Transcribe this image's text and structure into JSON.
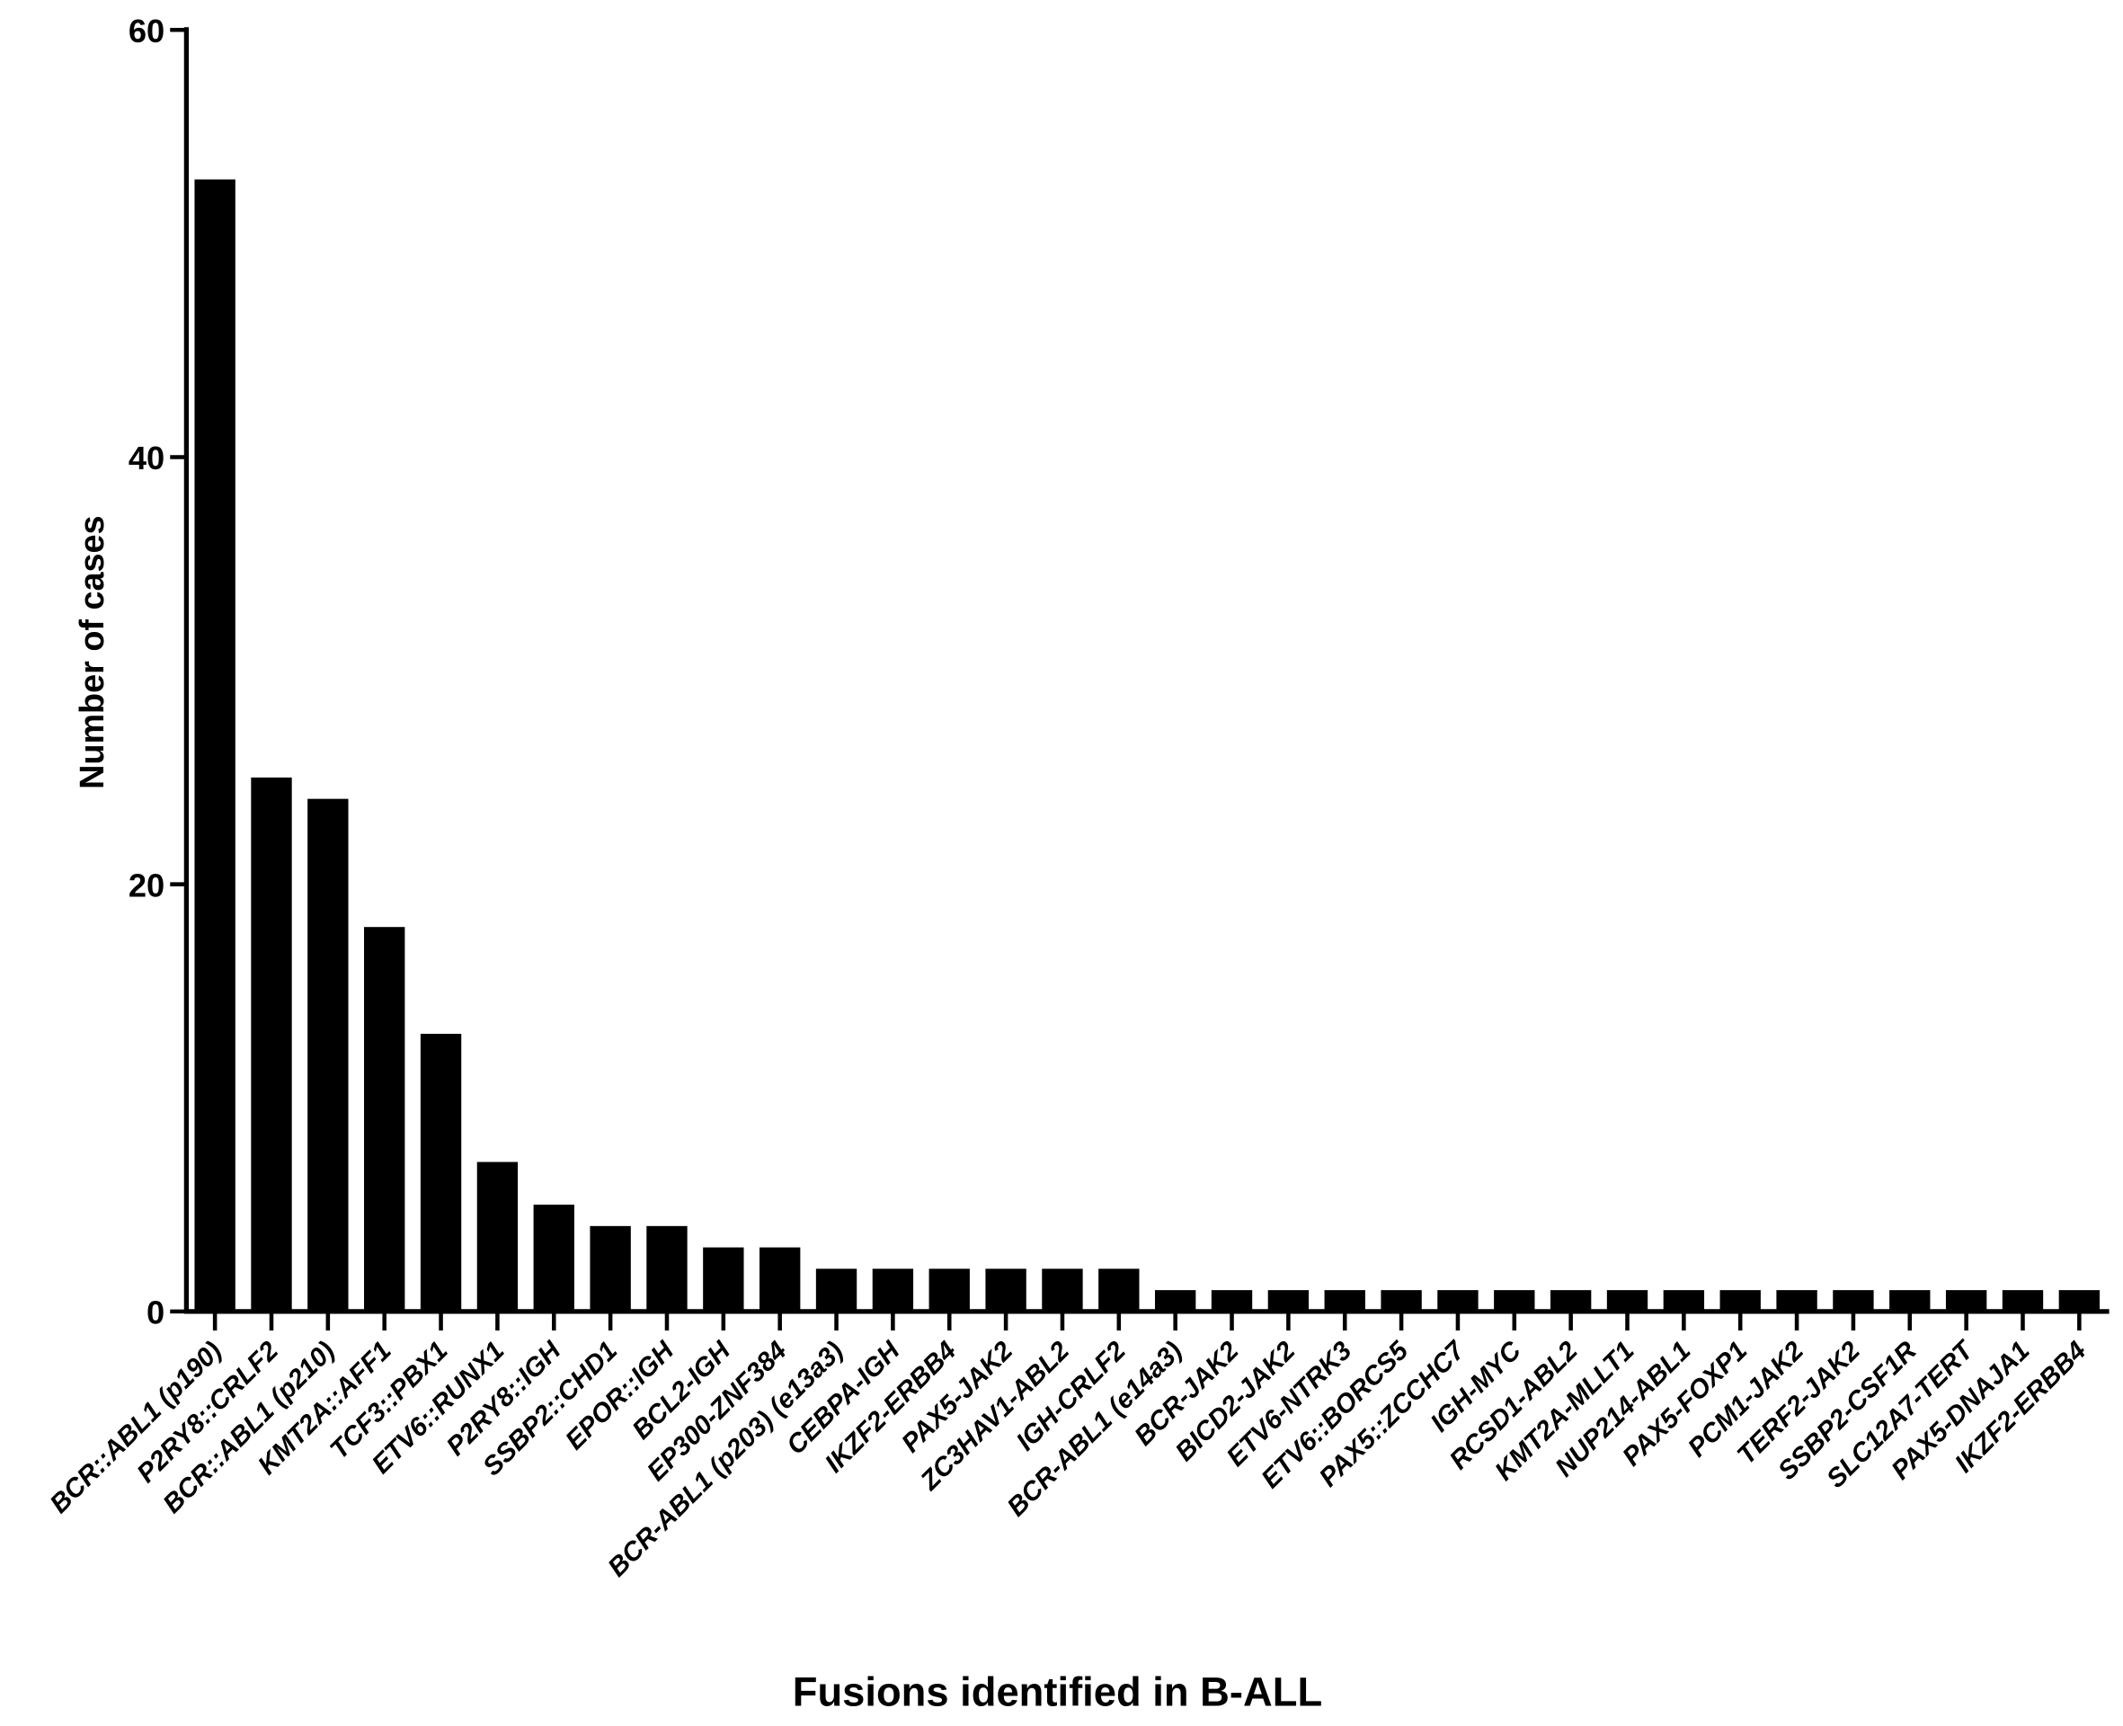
{
  "chart_data": {
    "type": "bar",
    "xlabel": "Fusions identified in B-ALL",
    "ylabel": "Number of cases",
    "ylim": [
      0,
      60
    ],
    "yticks": [
      0,
      20,
      40,
      60
    ],
    "grid": false,
    "bar_color": "#000000",
    "categories": [
      "BCR::ABL1 (p190)",
      "P2RY8::CRLF2",
      "BCR::ABL1 (p210)",
      "KMT2A::AFF1",
      "TCF3::PBX1",
      "ETV6::RUNX1",
      "P2RY8::IGH",
      "SSBP2::CHD1",
      "EPOR::IGH",
      "BCL2-IGH",
      "EP300-ZNF384",
      "BCR-ABL1 (p203) (e13a3)",
      "CEBPA-IGH",
      "IKZF2-ERBB4",
      "PAX5-JAK2",
      "ZC3HAV1-ABL2",
      "IGH-CRLF2",
      "BCR-ABL1 (e14a3)",
      "BCR-JAK2",
      "BICD2-JAK2",
      "ETV6-NTRK3",
      "ETV6::BORCS5",
      "PAX5::ZCCHC7",
      "IGH-MYC",
      "RCSD1-ABL2",
      "KMT2A-MLLT1",
      "NUP214-ABL1",
      "PAX5-FOXP1",
      "PCM1-JAK2",
      "TERF2-JAK2",
      "SSBP2-CSF1R",
      "SLC12A7-TERT",
      "PAX5-DNAJA1",
      "IKZF2-ERBB4"
    ],
    "values": [
      53,
      25,
      24,
      18,
      13,
      7,
      5,
      4,
      4,
      3,
      3,
      2,
      2,
      2,
      2,
      2,
      2,
      1,
      1,
      1,
      1,
      1,
      1,
      1,
      1,
      1,
      1,
      1,
      1,
      1,
      1,
      1,
      1,
      1
    ]
  }
}
